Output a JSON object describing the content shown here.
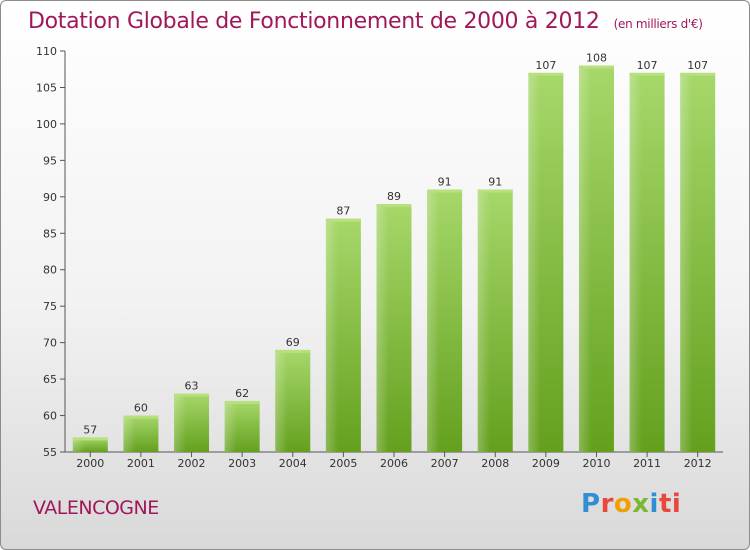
{
  "title": "Dotation Globale de Fonctionnement de 2000 à 2012",
  "subtitle": "(en milliers d'€)",
  "commune": "VALENCOGNE",
  "logo": {
    "text": "Proxiti",
    "letters": [
      "P",
      "r",
      "o",
      "x",
      "i",
      "ti"
    ]
  },
  "colors": {
    "title": "#a0185a",
    "bar_light": "#a6d86a",
    "bar_dark": "#64a01e"
  },
  "chart_data": {
    "type": "bar",
    "categories": [
      "2000",
      "2001",
      "2002",
      "2003",
      "2004",
      "2005",
      "2006",
      "2007",
      "2008",
      "2009",
      "2010",
      "2011",
      "2012"
    ],
    "values": [
      57,
      60,
      63,
      62,
      69,
      87,
      89,
      91,
      91,
      107,
      108,
      107,
      107
    ],
    "ylim": [
      55,
      110
    ],
    "yticks": [
      55,
      60,
      65,
      70,
      75,
      80,
      85,
      90,
      95,
      100,
      105,
      110
    ],
    "xlabel": "",
    "ylabel": "",
    "grid": false,
    "legend": "none"
  }
}
